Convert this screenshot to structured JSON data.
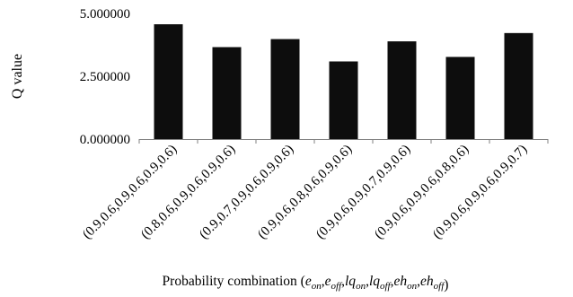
{
  "chart_data": {
    "type": "bar",
    "categories": [
      "(0.9,0.6,0.9,0.6,0.9,0.6)",
      "(0.8,0.6,0.9,0.6,0.9,0.6)",
      "(0.9,0.7,0.9,0.6,0.9,0.6)",
      "(0.9,0.6,0.8,0.6,0.9,0.6)",
      "(0.9,0.6,0.9,0.7,0.9,0.6)",
      "(0.9,0.6,0.9,0.6,0.8,0.6)",
      "(0.9,0.6,0.9,0.6,0.9,0.7)"
    ],
    "values": [
      4.57,
      3.66,
      3.98,
      3.09,
      3.89,
      3.27,
      4.22
    ],
    "ylabel": "Q value",
    "xlabel": {
      "prefix": "Probability combination (",
      "parts": [
        {
          "base": "e",
          "sub": "on"
        },
        {
          "base": "e",
          "sub": "off"
        },
        {
          "base": "lq",
          "sub": "on"
        },
        {
          "base": "lq",
          "sub": "off"
        },
        {
          "base": "eh",
          "sub": "on"
        },
        {
          "base": "eh",
          "sub": "off"
        }
      ],
      "suffix": ")"
    },
    "ylim": [
      0,
      5
    ],
    "yticks": [
      {
        "value": 0,
        "label": "0.000000"
      },
      {
        "value": 2.5,
        "label": "2.500000"
      },
      {
        "value": 5,
        "label": "5.000000"
      }
    ],
    "grid": false,
    "bar_color": "#0d0d0d",
    "axis_color": "#808080"
  }
}
